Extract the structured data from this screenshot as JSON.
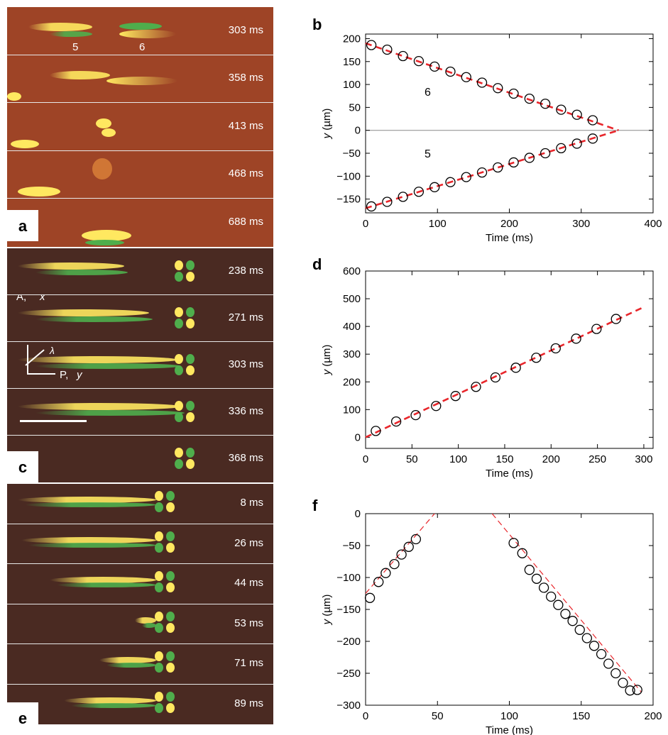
{
  "panel_labels": {
    "a": "a",
    "b": "b",
    "c": "c",
    "d": "d",
    "e": "e",
    "f": "f"
  },
  "micrographs": {
    "a": {
      "frame_times": [
        "303 ms",
        "358 ms",
        "413 ms",
        "468 ms",
        "688 ms"
      ],
      "defect_labels": [
        "5",
        "6"
      ]
    },
    "c": {
      "frame_times": [
        "238 ms",
        "271 ms",
        "303 ms",
        "336 ms",
        "368 ms"
      ],
      "axis_labels": {
        "a": "A,",
        "x": "x",
        "lambda": "λ",
        "p": "P,",
        "y": "y"
      }
    },
    "e": {
      "frame_times": [
        "8 ms",
        "26 ms",
        "44 ms",
        "53 ms",
        "71 ms",
        "89 ms"
      ]
    }
  },
  "colors": {
    "fit_line": "#e8262b",
    "micrograph_a_bg": "#9e4426",
    "micrograph_ce_bg": "#4a2a22",
    "streak_yellow": "#ffe860",
    "streak_green": "#4fae4c"
  },
  "chart_data": [
    {
      "panel": "b",
      "type": "scatter",
      "xlabel": "Time (ms)",
      "ylabel_var": "y",
      "ylabel_unit": "(µm)",
      "xlim": [
        0,
        400
      ],
      "ylim": [
        -180,
        210
      ],
      "xticks": [
        0,
        100,
        200,
        300,
        400
      ],
      "yticks": [
        -150,
        -100,
        -50,
        0,
        50,
        100,
        150,
        200
      ],
      "zero_line": true,
      "annotations": [
        "6",
        "5"
      ],
      "series": [
        {
          "x": [
            8,
            30,
            52,
            74,
            96,
            118,
            140,
            162,
            184,
            206,
            228,
            250,
            272,
            294,
            316
          ],
          "y": [
            186,
            176,
            162,
            151,
            139,
            128,
            116,
            104,
            92,
            80,
            69,
            58,
            45,
            34,
            22
          ]
        },
        {
          "x": [
            8,
            30,
            52,
            74,
            96,
            118,
            140,
            162,
            184,
            206,
            228,
            250,
            272,
            294,
            316
          ],
          "y": [
            -166,
            -156,
            -145,
            -134,
            -124,
            -113,
            -102,
            -92,
            -81,
            -70,
            -60,
            -50,
            -39,
            -29,
            -18
          ]
        }
      ],
      "fits": [
        {
          "x": [
            0,
            352
          ],
          "y": [
            190,
            0
          ]
        },
        {
          "x": [
            0,
            352
          ],
          "y": [
            -170,
            0
          ]
        }
      ]
    },
    {
      "panel": "d",
      "type": "scatter",
      "xlabel": "Time (ms)",
      "ylabel_var": "y",
      "ylabel_unit": "(µm)",
      "xlim": [
        0,
        310
      ],
      "ylim": [
        -40,
        600
      ],
      "xticks": [
        0,
        50,
        100,
        150,
        200,
        250,
        300
      ],
      "yticks": [
        0,
        100,
        200,
        300,
        400,
        500,
        600
      ],
      "series": [
        {
          "x": [
            11,
            33,
            54,
            76,
            97,
            119,
            140,
            162,
            184,
            205,
            227,
            249,
            270
          ],
          "y": [
            23,
            57,
            80,
            113,
            149,
            182,
            216,
            251,
            287,
            321,
            356,
            391,
            427
          ]
        }
      ],
      "fits": [
        {
          "x": [
            0,
            300
          ],
          "y": [
            0,
            470
          ]
        }
      ]
    },
    {
      "panel": "f",
      "type": "scatter",
      "xlabel": "Time (ms)",
      "ylabel_var": "y",
      "ylabel_unit": "(µm)",
      "xlim": [
        0,
        200
      ],
      "ylim": [
        -300,
        0
      ],
      "xticks": [
        0,
        50,
        100,
        150,
        200
      ],
      "yticks": [
        -300,
        -250,
        -200,
        -150,
        -100,
        -50,
        0
      ],
      "series": [
        {
          "x": [
            3,
            9,
            14,
            20,
            25,
            30,
            35
          ],
          "y": [
            -132,
            -107,
            -93,
            -79,
            -64,
            -52,
            -40
          ]
        },
        {
          "x": [
            103,
            109,
            114,
            119,
            124,
            129,
            134,
            139,
            144,
            149,
            154,
            159,
            164,
            169,
            174,
            179,
            184,
            189
          ],
          "y": [
            -46,
            -62,
            -88,
            -102,
            -116,
            -130,
            -143,
            -157,
            -168,
            -182,
            -195,
            -207,
            -220,
            -235,
            -250,
            -265,
            -277,
            -276
          ]
        }
      ],
      "fits": [
        {
          "x": [
            0,
            48
          ],
          "y": [
            -125,
            0
          ]
        },
        {
          "x": [
            88,
            192
          ],
          "y": [
            0,
            -280
          ]
        }
      ]
    }
  ]
}
